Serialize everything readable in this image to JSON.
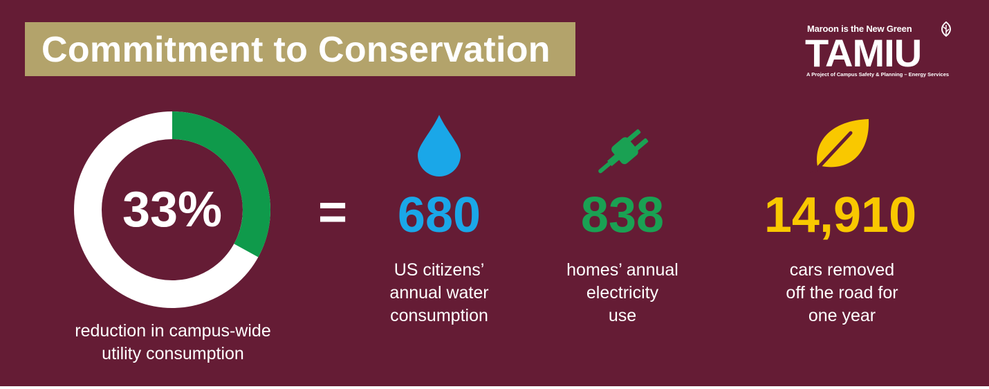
{
  "title": "Commitment to Conservation",
  "logo": {
    "tagline": "Maroon is the New Green",
    "wordmark": "TAMIU",
    "subline": "A Project of Campus Safety & Planning – Energy Services"
  },
  "main_stat": {
    "value": "33%",
    "fraction": 0.33,
    "caption": "reduction in campus-wide\nutility consumption"
  },
  "equals": "=",
  "stats": [
    {
      "value": "680",
      "caption": "US citizens’\nannual water\nconsumption",
      "icon": "water-drop-icon",
      "color": "#1aa7e8"
    },
    {
      "value": "838",
      "caption": "homes’ annual\nelectricity\nuse",
      "icon": "plug-icon",
      "color": "#1aa153"
    },
    {
      "value": "14,910",
      "caption": "cars removed\noff the road for\none year",
      "icon": "leaf-icon",
      "color": "#f9c800"
    }
  ],
  "colors": {
    "background": "#651c35",
    "title_bar": "#b3a36b",
    "ring_track": "#ffffff",
    "ring_fill": "#0f9a4b"
  }
}
